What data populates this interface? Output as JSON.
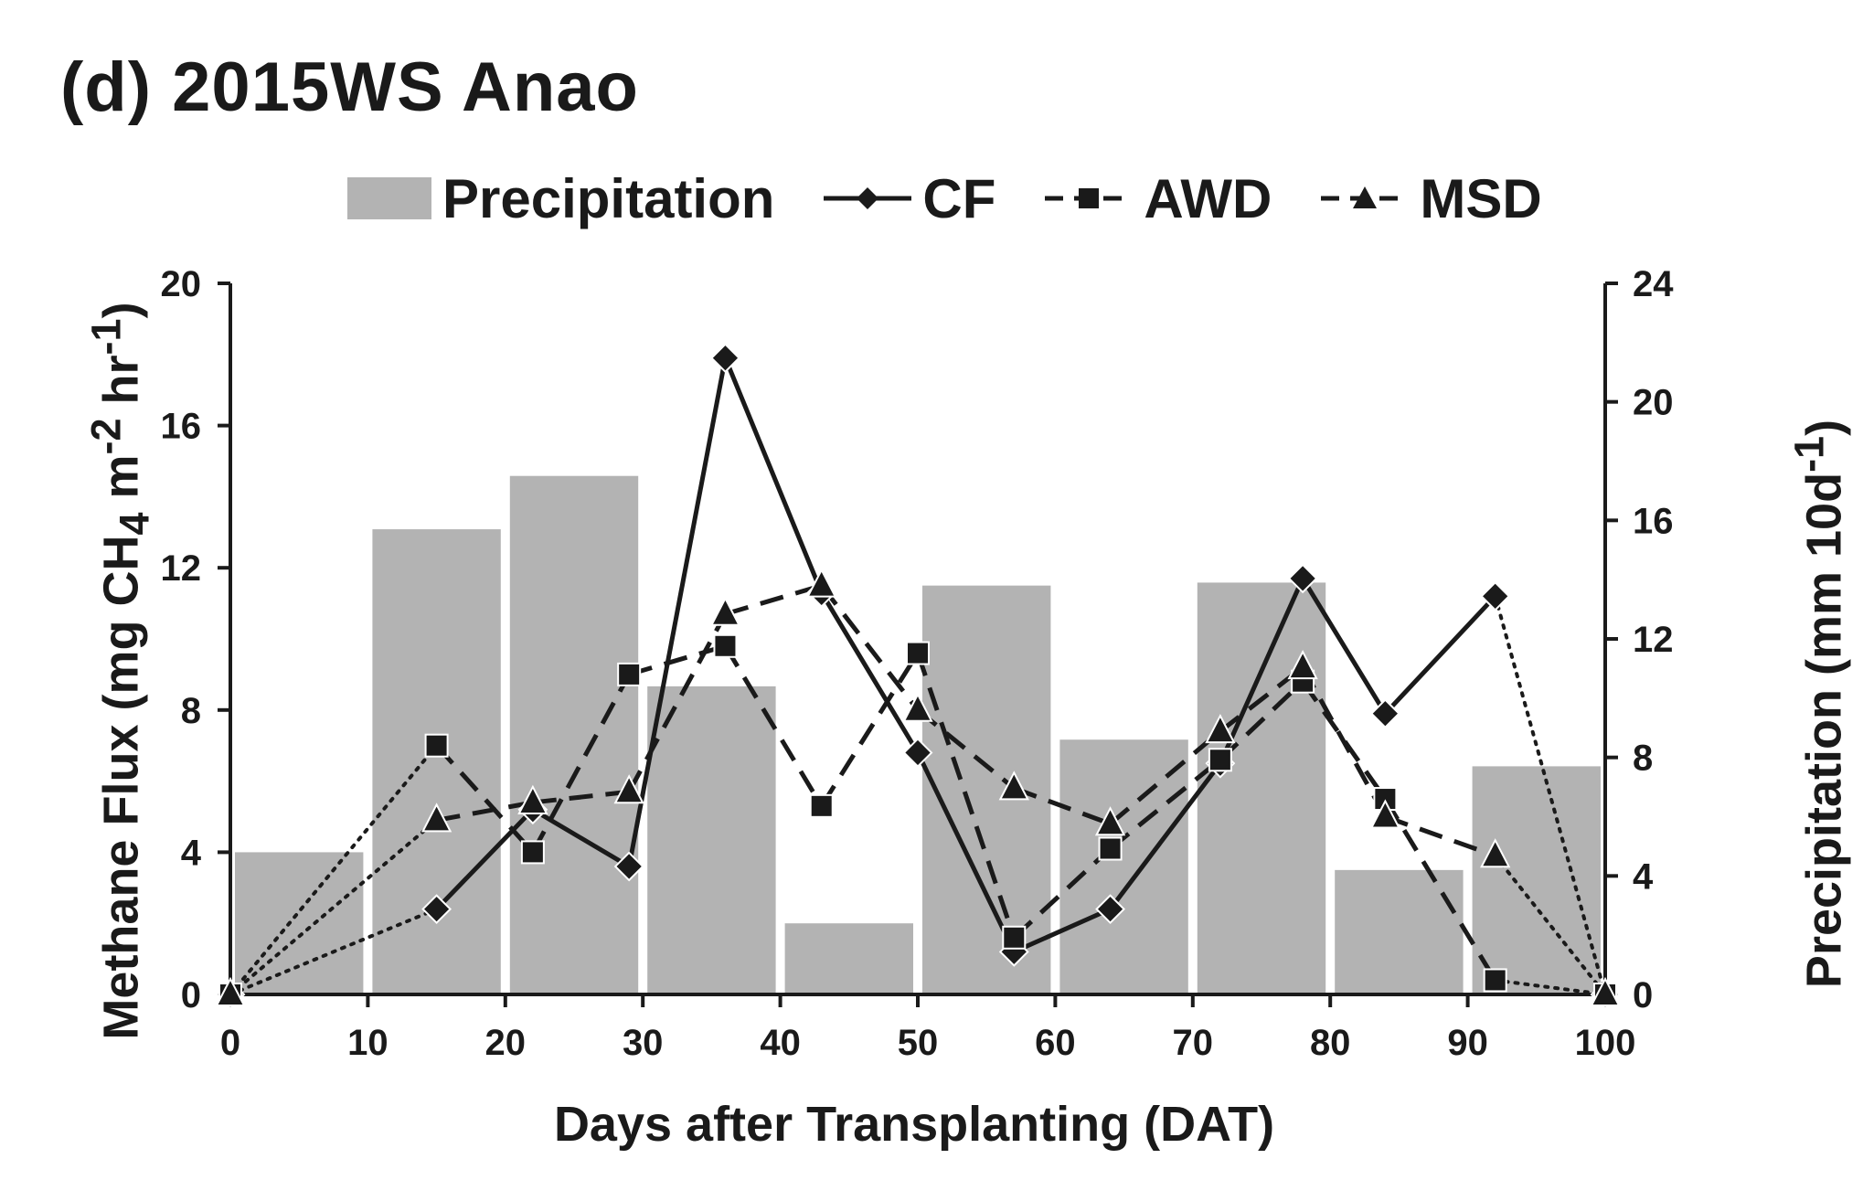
{
  "chart_data": {
    "type": "bar+line",
    "title": "(d) 2015WS Anao",
    "xlabel": "Days after Transplanting (DAT)",
    "ylabel_left": {
      "prefix": "Methane Flux (mg CH",
      "sub": "4",
      "mid1": " m",
      "sup1": "-2",
      "mid2": " hr",
      "sup2": "-1",
      "suffix": ")"
    },
    "ylabel_right": {
      "prefix": "Precipitation (mm 10d",
      "sup": "-1",
      "suffix": ")"
    },
    "xlim": [
      0,
      100
    ],
    "ylim_left": [
      0,
      20
    ],
    "ylim_right": [
      0,
      24
    ],
    "x_ticks": [
      0,
      10,
      20,
      30,
      40,
      50,
      60,
      70,
      80,
      90,
      100
    ],
    "y_left_ticks": [
      0,
      4,
      8,
      12,
      16,
      20
    ],
    "y_right_ticks": [
      0,
      4,
      8,
      12,
      16,
      20,
      24
    ],
    "legend": [
      {
        "label": "Precipitation",
        "style": "bar"
      },
      {
        "label": "CF",
        "style": "solid-diamond"
      },
      {
        "label": "AWD",
        "style": "dashed-square"
      },
      {
        "label": "MSD",
        "style": "dashed-triangle"
      }
    ],
    "precipitation": {
      "name": "Precipitation",
      "bins": [
        [
          0,
          10
        ],
        [
          10,
          20
        ],
        [
          20,
          30
        ],
        [
          30,
          40
        ],
        [
          40,
          50
        ],
        [
          50,
          60
        ],
        [
          60,
          70
        ],
        [
          70,
          80
        ],
        [
          80,
          90
        ],
        [
          90,
          100
        ]
      ],
      "values": [
        4.8,
        15.7,
        17.5,
        10.4,
        2.4,
        13.8,
        8.6,
        13.9,
        4.2,
        7.7
      ]
    },
    "series": [
      {
        "name": "CF",
        "marker": "diamond",
        "dash": "solid",
        "x": [
          0,
          15,
          22,
          29,
          36,
          43,
          50,
          57,
          64,
          72,
          78,
          84,
          92,
          100
        ],
        "values": [
          0,
          2.4,
          5.2,
          3.6,
          17.9,
          11.3,
          6.8,
          1.2,
          2.4,
          6.5,
          11.7,
          7.9,
          11.2,
          0
        ],
        "dotted_segments": [
          [
            0,
            1
          ],
          [
            12,
            13
          ]
        ]
      },
      {
        "name": "AWD",
        "marker": "square",
        "dash": "dashed",
        "x": [
          0,
          15,
          22,
          29,
          36,
          43,
          50,
          57,
          64,
          72,
          78,
          84,
          92,
          100
        ],
        "values": [
          0,
          7.0,
          4.0,
          9.0,
          9.8,
          5.3,
          9.6,
          1.6,
          4.1,
          6.6,
          8.8,
          5.5,
          0.4,
          0
        ],
        "dotted_segments": [
          [
            0,
            1
          ],
          [
            12,
            13
          ]
        ]
      },
      {
        "name": "MSD",
        "marker": "triangle",
        "dash": "dashed",
        "x": [
          0,
          15,
          22,
          29,
          36,
          43,
          50,
          57,
          64,
          72,
          78,
          84,
          92,
          100
        ],
        "values": [
          0,
          4.9,
          5.4,
          5.7,
          10.7,
          11.5,
          8.0,
          5.8,
          4.8,
          7.4,
          9.2,
          5.0,
          3.9,
          0
        ],
        "dotted_segments": [
          [
            0,
            1
          ],
          [
            12,
            13
          ]
        ]
      }
    ]
  }
}
